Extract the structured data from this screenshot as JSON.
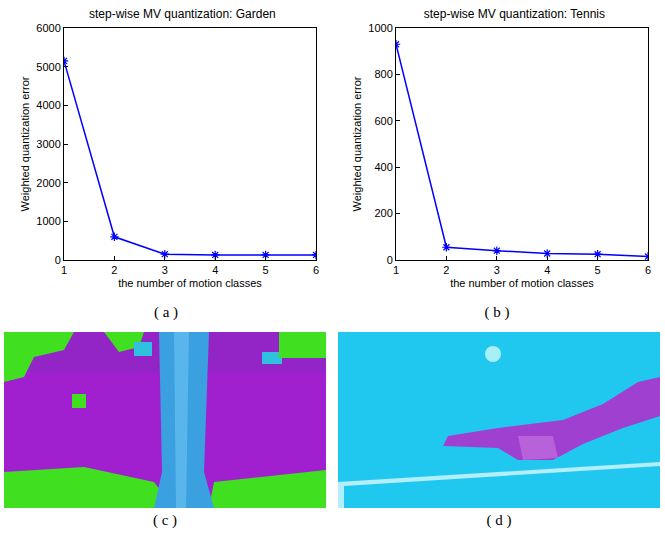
{
  "chart_data": [
    {
      "type": "line",
      "title": "step-wise MV quantization: Garden",
      "annotations": [
        "( a )"
      ],
      "x_label": "the number of motion classes",
      "y_label": "Weighted quantization error",
      "x": [
        1,
        2,
        3,
        4,
        5,
        6
      ],
      "values": [
        5150,
        600,
        150,
        130,
        130,
        130
      ],
      "color": "#0000ff",
      "marker": "asterisk",
      "xlim": [
        1,
        6
      ],
      "xticks": [
        1,
        2,
        3,
        4,
        5,
        6
      ],
      "ylim": [
        0,
        6000
      ],
      "yticks": [
        0,
        1000,
        2000,
        3000,
        4000,
        5000,
        6000
      ],
      "grid": false
    },
    {
      "type": "line",
      "title": "step-wise MV quantization: Tennis",
      "annotations": [
        "( b )"
      ],
      "x_label": "the number of motion classes",
      "y_label": "Weighted quantization error",
      "x": [
        1,
        2,
        3,
        4,
        5,
        6
      ],
      "values": [
        930,
        55,
        40,
        28,
        25,
        15
      ],
      "color": "#0000ff",
      "marker": "asterisk",
      "xlim": [
        1,
        6
      ],
      "xticks": [
        1,
        2,
        3,
        4,
        5,
        6
      ],
      "ylim": [
        0,
        1000
      ],
      "yticks": [
        0,
        200,
        400,
        600,
        800,
        1000
      ],
      "grid": false
    }
  ],
  "images": [
    {
      "label": "( c )"
    },
    {
      "label": "( d )"
    }
  ]
}
